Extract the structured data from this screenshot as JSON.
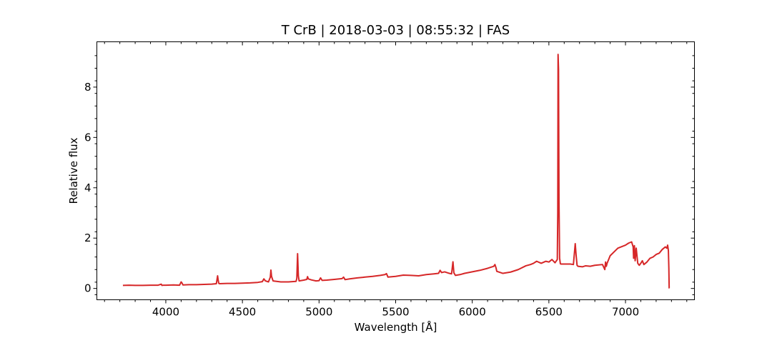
{
  "chart_data": {
    "type": "line",
    "title": "T CrB | 2018-03-03 | 08:55:32 | FAS",
    "xlabel": "Wavelength [Å]",
    "ylabel": "Relative flux",
    "xlim": [
      3550,
      7450
    ],
    "ylim": [
      -0.45,
      9.8
    ],
    "xticks": [
      4000,
      4500,
      5000,
      5500,
      6000,
      6500,
      7000
    ],
    "yticks": [
      0,
      2,
      4,
      6,
      8
    ],
    "xtick_labels": [
      "4000",
      "4500",
      "5000",
      "5500",
      "6000",
      "6500",
      "7000"
    ],
    "ytick_labels": [
      "0",
      "2",
      "4",
      "6",
      "8"
    ],
    "grid": false,
    "series": [
      {
        "color": "#d62728",
        "x": [
          3720,
          3760,
          3800,
          3850,
          3900,
          3950,
          3970,
          3975,
          3985,
          4000,
          4050,
          4090,
          4100,
          4105,
          4112,
          4150,
          4200,
          4250,
          4300,
          4330,
          4338,
          4342,
          4346,
          4350,
          4400,
          4450,
          4500,
          4550,
          4600,
          4630,
          4640,
          4650,
          4670,
          4682,
          4686,
          4690,
          4700,
          4750,
          4800,
          4850,
          4855,
          4860,
          4865,
          4870,
          4900,
          4920,
          4925,
          4930,
          4950,
          4980,
          5000,
          5010,
          5020,
          5050,
          5100,
          5150,
          5160,
          5170,
          5200,
          5250,
          5300,
          5350,
          5400,
          5430,
          5440,
          5450,
          5500,
          5550,
          5600,
          5650,
          5700,
          5750,
          5780,
          5790,
          5800,
          5820,
          5850,
          5865,
          5874,
          5880,
          5890,
          5920,
          5950,
          6000,
          6050,
          6100,
          6140,
          6148,
          6155,
          6160,
          6200,
          6250,
          6300,
          6350,
          6380,
          6400,
          6420,
          6450,
          6480,
          6500,
          6520,
          6540,
          6555,
          6558,
          6560,
          6563,
          6566,
          6570,
          6575,
          6580,
          6600,
          6640,
          6660,
          6672,
          6678,
          6684,
          6690,
          6720,
          6740,
          6770,
          6800,
          6850,
          6865,
          6870,
          6875,
          6880,
          6900,
          6950,
          7000,
          7020,
          7040,
          7050,
          7053,
          7058,
          7063,
          7070,
          7080,
          7090,
          7100,
          7110,
          7120,
          7130,
          7140,
          7160,
          7180,
          7200,
          7220,
          7240,
          7260,
          7270,
          7275,
          7280,
          7283,
          7285,
          7287
        ],
        "values": [
          0.12,
          0.13,
          0.12,
          0.12,
          0.13,
          0.13,
          0.17,
          0.12,
          0.13,
          0.13,
          0.14,
          0.13,
          0.26,
          0.22,
          0.14,
          0.15,
          0.15,
          0.16,
          0.17,
          0.19,
          0.5,
          0.32,
          0.2,
          0.19,
          0.2,
          0.2,
          0.21,
          0.22,
          0.24,
          0.27,
          0.38,
          0.3,
          0.26,
          0.45,
          0.73,
          0.48,
          0.3,
          0.26,
          0.26,
          0.28,
          0.4,
          1.38,
          0.5,
          0.3,
          0.33,
          0.36,
          0.47,
          0.38,
          0.34,
          0.3,
          0.31,
          0.42,
          0.32,
          0.33,
          0.36,
          0.39,
          0.45,
          0.35,
          0.38,
          0.42,
          0.45,
          0.48,
          0.52,
          0.55,
          0.59,
          0.45,
          0.48,
          0.53,
          0.52,
          0.5,
          0.55,
          0.58,
          0.6,
          0.72,
          0.63,
          0.66,
          0.6,
          0.58,
          1.06,
          0.62,
          0.52,
          0.55,
          0.6,
          0.66,
          0.72,
          0.8,
          0.88,
          0.95,
          0.82,
          0.68,
          0.6,
          0.65,
          0.75,
          0.9,
          0.95,
          1.0,
          1.08,
          1.0,
          1.08,
          1.05,
          1.15,
          1.02,
          1.15,
          3.0,
          9.3,
          8.7,
          3.5,
          1.2,
          0.98,
          0.97,
          0.97,
          0.97,
          0.95,
          1.78,
          1.3,
          0.92,
          0.88,
          0.86,
          0.9,
          0.88,
          0.92,
          0.95,
          0.75,
          1.05,
          0.88,
          1.0,
          1.3,
          1.6,
          1.72,
          1.8,
          1.85,
          1.65,
          1.2,
          1.7,
          1.1,
          1.6,
          1.0,
          0.92,
          1.0,
          1.1,
          0.95,
          1.0,
          1.05,
          1.2,
          1.25,
          1.35,
          1.4,
          1.55,
          1.65,
          1.6,
          1.72,
          1.5,
          0.8,
          0.02,
          0.02
        ]
      }
    ]
  }
}
